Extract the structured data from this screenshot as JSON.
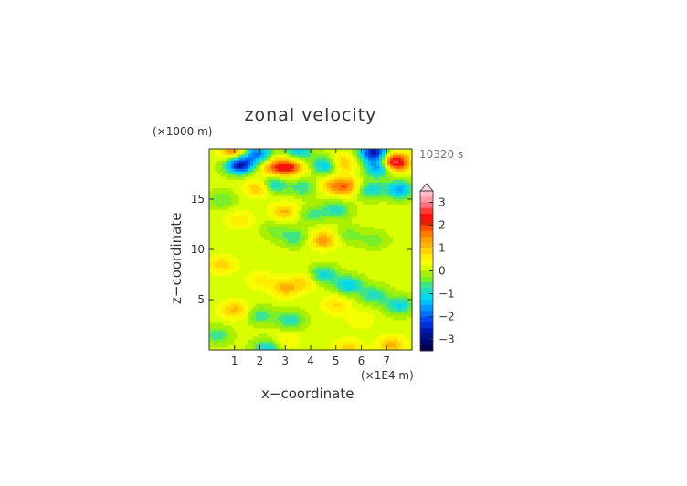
{
  "chart_data": {
    "type": "heatmap",
    "title": "zonal velocity",
    "xlabel": "x−coordinate",
    "ylabel": "z−coordinate",
    "x_unit": "(×1E4 m)",
    "y_unit": "(×1000 m)",
    "time_label": "10320 s",
    "xlim": [
      0,
      8
    ],
    "ylim": [
      0,
      20
    ],
    "x_ticks": [
      "1",
      "2",
      "3",
      "4",
      "5",
      "6",
      "7"
    ],
    "y_ticks": [
      "5",
      "10",
      "15"
    ],
    "colorbar": {
      "ticks": [
        "3",
        "2",
        "1",
        "0",
        "−1",
        "−2",
        "−3"
      ],
      "levels": [
        3.5,
        3.25,
        3,
        2.75,
        2.5,
        2.25,
        2,
        1.75,
        1.5,
        1.25,
        1,
        0.75,
        0.5,
        0.25,
        0,
        -0.25,
        -0.5,
        -0.75,
        -1,
        -1.25,
        -1.5,
        -1.75,
        -2,
        -2.25,
        -2.5,
        -2.75,
        -3,
        -3.25,
        -3.5
      ],
      "colors": [
        "#ffc0cb",
        "#ff9aa8",
        "#ff7080",
        "#ff3b3b",
        "#ff1010",
        "#e81e00",
        "#ff5000",
        "#ff7b00",
        "#ff9e00",
        "#ffb100",
        "#ffd400",
        "#ffee00",
        "#f5ff00",
        "#d8ff00",
        "#a9f000",
        "#79ee2a",
        "#3fe38a",
        "#20dcc0",
        "#00d8ec",
        "#00bfff",
        "#0098ff",
        "#0070ff",
        "#0048f0",
        "#0030d8",
        "#0018b0",
        "#00108a",
        "#000870",
        "#00004f"
      ],
      "overflow_colors": {
        "high": "#ffd5de",
        "low": "#000040"
      }
    },
    "field_features": [
      {
        "x": 1.2,
        "z": 18.5,
        "value": -3.0
      },
      {
        "x": 2.6,
        "z": 18.2,
        "value": 1.5
      },
      {
        "x": 3.2,
        "z": 18.3,
        "value": 1.8
      },
      {
        "x": 4.6,
        "z": 18.4,
        "value": -1.5
      },
      {
        "x": 5.2,
        "z": 18.6,
        "value": 1.2
      },
      {
        "x": 6.7,
        "z": 18.2,
        "value": -2.0
      },
      {
        "x": 7.3,
        "z": 18.7,
        "value": 3.0
      },
      {
        "x": 1.0,
        "z": 19.7,
        "value": 1.6
      },
      {
        "x": 1.9,
        "z": 19.6,
        "value": -2.0
      },
      {
        "x": 3.5,
        "z": 19.7,
        "value": -1.3
      },
      {
        "x": 6.5,
        "z": 19.7,
        "value": -2.8
      },
      {
        "x": 2.0,
        "z": 16.2,
        "value": 1.2
      },
      {
        "x": 2.5,
        "z": 16.5,
        "value": -1.4
      },
      {
        "x": 3.7,
        "z": 16.2,
        "value": -0.8
      },
      {
        "x": 4.9,
        "z": 16.4,
        "value": 1.0
      },
      {
        "x": 5.5,
        "z": 16.3,
        "value": 1.3
      },
      {
        "x": 6.3,
        "z": 16.0,
        "value": -1.2
      },
      {
        "x": 7.5,
        "z": 16.0,
        "value": -1.6
      },
      {
        "x": 0.5,
        "z": 15.0,
        "value": -0.6
      },
      {
        "x": 3.0,
        "z": 13.8,
        "value": 1.0
      },
      {
        "x": 4.0,
        "z": 13.5,
        "value": -0.7
      },
      {
        "x": 5.0,
        "z": 14.0,
        "value": -1.0
      },
      {
        "x": 1.2,
        "z": 13.0,
        "value": 0.6
      },
      {
        "x": 2.6,
        "z": 12.0,
        "value": -0.5
      },
      {
        "x": 3.4,
        "z": 11.2,
        "value": -0.8
      },
      {
        "x": 4.5,
        "z": 11.0,
        "value": 1.3
      },
      {
        "x": 5.5,
        "z": 11.5,
        "value": -0.5
      },
      {
        "x": 6.5,
        "z": 11.0,
        "value": -0.5
      },
      {
        "x": 0.5,
        "z": 8.5,
        "value": 0.8
      },
      {
        "x": 2.0,
        "z": 7.0,
        "value": 0.5
      },
      {
        "x": 3.0,
        "z": 6.2,
        "value": 1.0
      },
      {
        "x": 3.8,
        "z": 6.8,
        "value": 0.7
      },
      {
        "x": 4.5,
        "z": 7.5,
        "value": -1.2
      },
      {
        "x": 5.5,
        "z": 6.5,
        "value": -1.3
      },
      {
        "x": 6.5,
        "z": 5.5,
        "value": -1.0
      },
      {
        "x": 7.5,
        "z": 4.5,
        "value": -1.2
      },
      {
        "x": 1.0,
        "z": 4.0,
        "value": 1.0
      },
      {
        "x": 2.0,
        "z": 3.5,
        "value": -0.8
      },
      {
        "x": 3.2,
        "z": 3.0,
        "value": -1.0
      },
      {
        "x": 5.0,
        "z": 4.5,
        "value": 0.7
      },
      {
        "x": 6.0,
        "z": 3.0,
        "value": 0.4
      },
      {
        "x": 3.0,
        "z": 1.0,
        "value": 0.5
      },
      {
        "x": 2.3,
        "z": 0.2,
        "value": -1.2
      },
      {
        "x": 5.5,
        "z": 0.2,
        "value": 0.8
      },
      {
        "x": 7.2,
        "z": 0.5,
        "value": 1.0
      },
      {
        "x": 0.3,
        "z": 1.5,
        "value": -0.8
      }
    ]
  }
}
